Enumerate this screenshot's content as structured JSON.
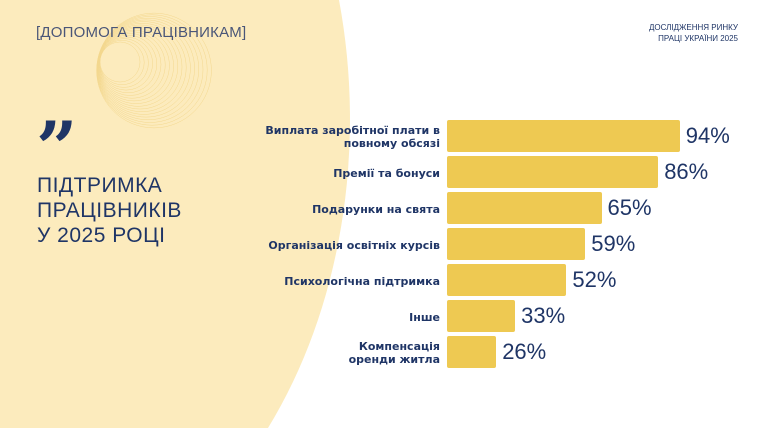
{
  "header": {
    "section_label": "[ДОПОМОГА ПРАЦІВНИКАМ]",
    "report_line1": "ДОСЛІДЖЕННЯ РИНКУ",
    "report_line2": "ПРАЦІ УКРАЇНИ 2025"
  },
  "quote_glyph": "”",
  "headline": [
    "ПІДТРИМКА",
    "ПРАЦІВНИКІВ",
    "У 2025 РОЦІ"
  ],
  "colors": {
    "bar": "#eec952",
    "text": "#1f3566",
    "background_shape": "#fcebbd"
  },
  "chart_data": {
    "type": "bar",
    "orientation": "horizontal",
    "categories": [
      "Виплата заробітної плати в повному обсязі",
      "Премії та бонуси",
      "Подарунки на свята",
      "Організація освітніх курсів",
      "Психологічна підтримка",
      "Інше",
      "Компенсація оренди житла"
    ],
    "category_lines": [
      [
        "Виплата заробітної плати в",
        "повному обсязі"
      ],
      [
        "Премії та бонуси"
      ],
      [
        "Подарунки на свята"
      ],
      [
        "Організація освітніх курсів"
      ],
      [
        "Психологічна підтримка"
      ],
      [
        "Інше"
      ],
      [
        "Компенсація",
        "оренди житла"
      ]
    ],
    "values": [
      94,
      86,
      65,
      59,
      52,
      33,
      26
    ],
    "data_labels": [
      "94%",
      "86%",
      "65%",
      "59%",
      "52%",
      "33%",
      "26%"
    ],
    "unit": "%",
    "grid": false,
    "legend": "none"
  }
}
